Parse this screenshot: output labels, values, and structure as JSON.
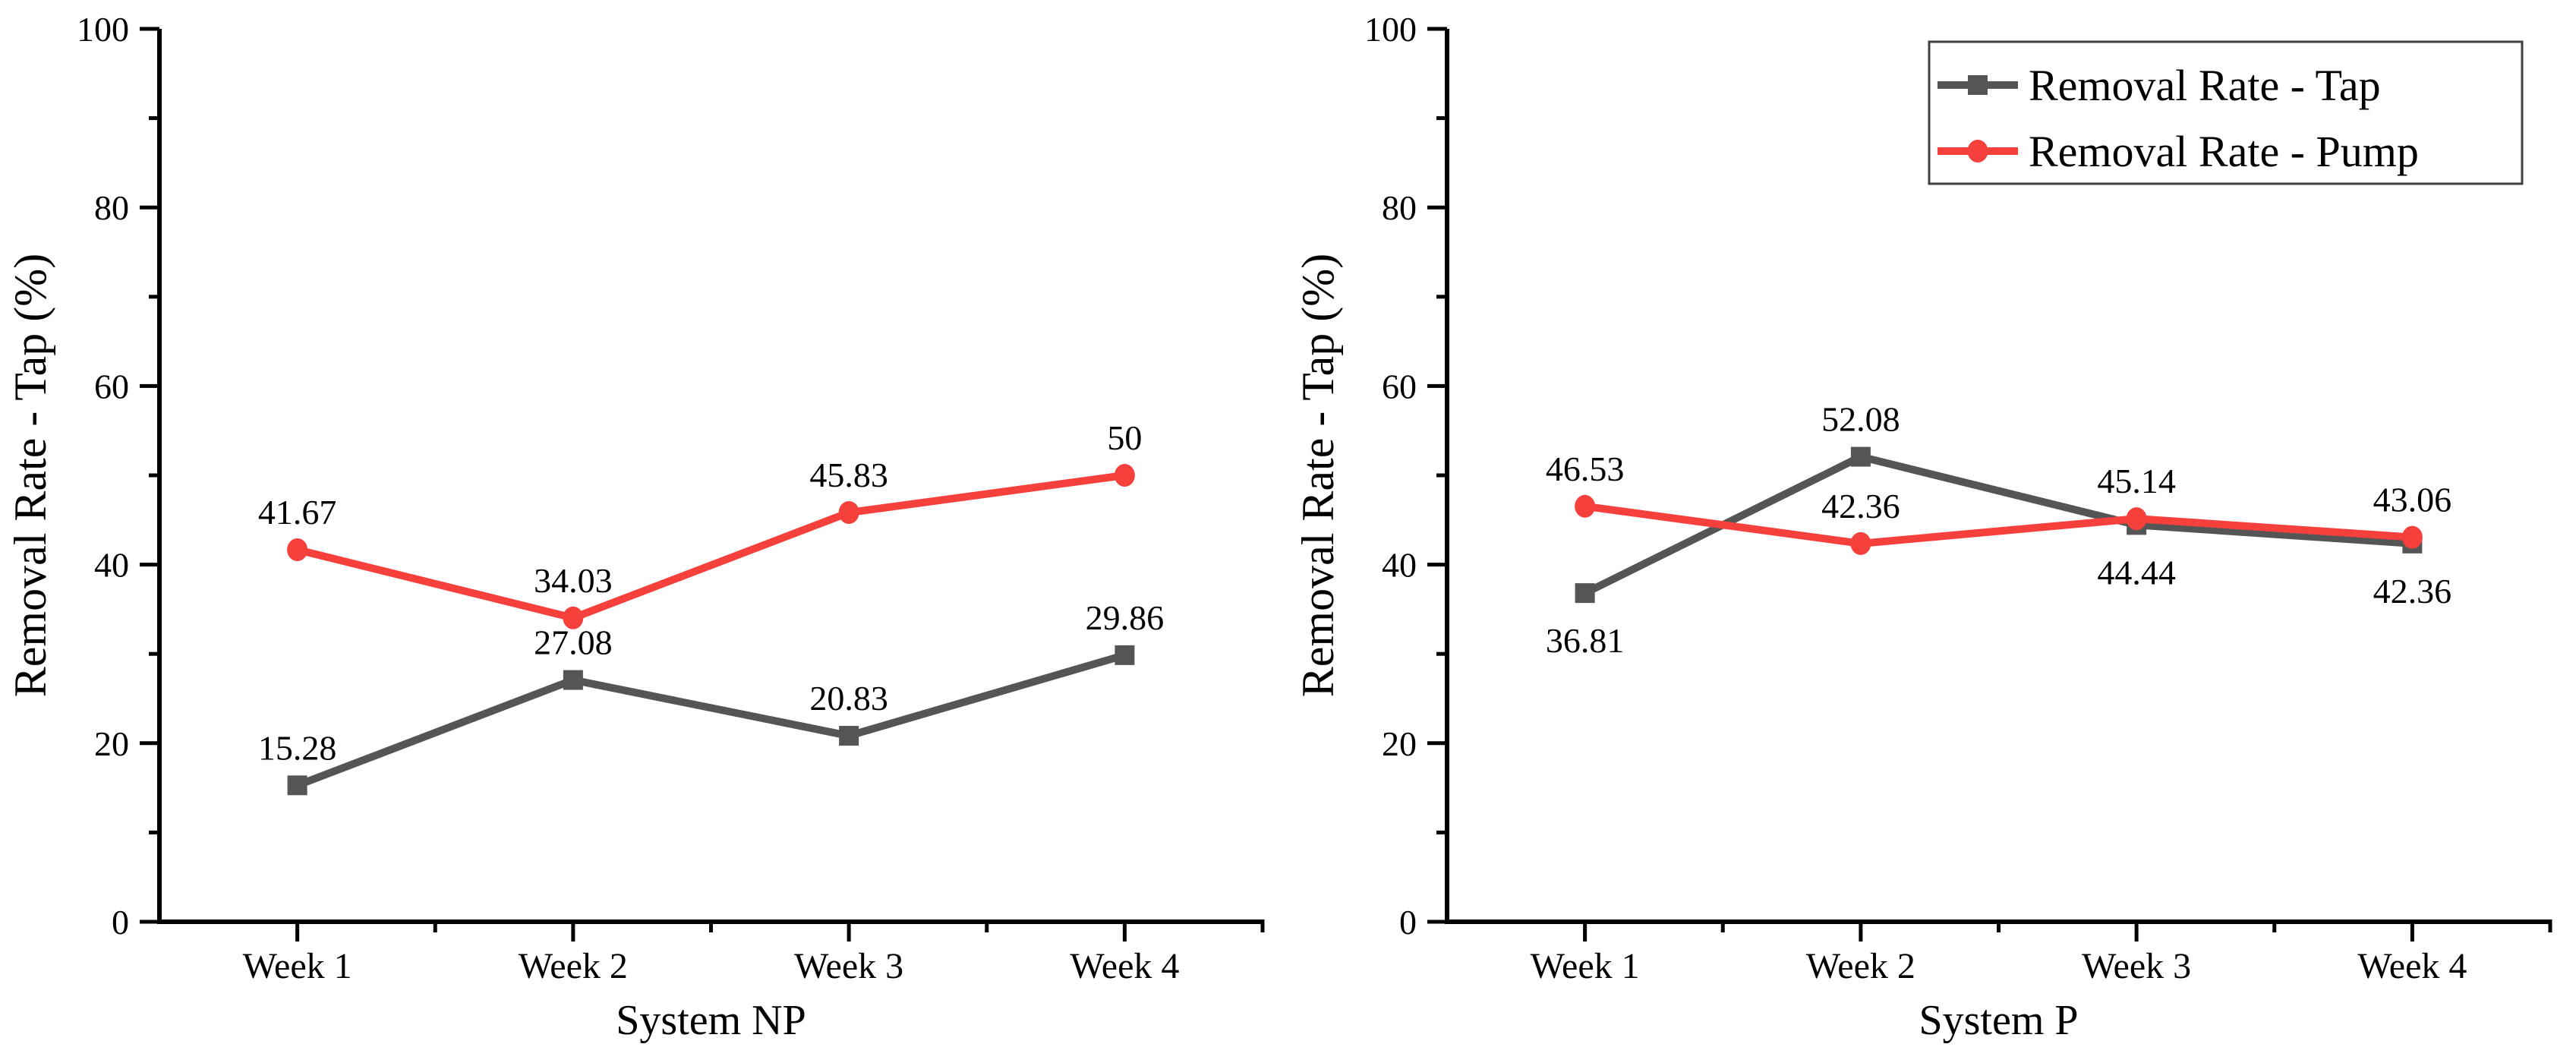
{
  "figure": {
    "background": "#ffffff",
    "text_color": "#000000",
    "axis_color": "#000000"
  },
  "series_styles": {
    "tap": {
      "color": "#555555",
      "marker": "square"
    },
    "pump": {
      "color": "#f5403c",
      "marker": "circle"
    }
  },
  "legend": {
    "border_color": "#3f3f3f",
    "background": "#ffffff",
    "entries": [
      {
        "key": "tap",
        "label": "Removal Rate - Tap"
      },
      {
        "key": "pump",
        "label": "Removal Rate - Pump"
      }
    ]
  },
  "chart_data": [
    {
      "type": "line",
      "title": "",
      "xlabel": "System NP",
      "ylabel": "Removal Rate - Tap (%)",
      "categories": [
        "Week 1",
        "Week 2",
        "Week 3",
        "Week 4"
      ],
      "ylim": [
        0,
        100
      ],
      "y_major_ticks": [
        0,
        20,
        40,
        60,
        80,
        100
      ],
      "y_minor_ticks": [
        10,
        30,
        50,
        70,
        90
      ],
      "grid": false,
      "legend_visible": false,
      "series": [
        {
          "key": "tap",
          "name": "Removal Rate - Tap",
          "values": [
            15.28,
            27.08,
            20.83,
            29.86
          ],
          "point_labels": [
            "15.28",
            "27.08",
            "20.83",
            "29.86"
          ],
          "label_placement": [
            "above",
            "above",
            "above",
            "above"
          ]
        },
        {
          "key": "pump",
          "name": "Removal Rate - Pump",
          "values": [
            41.67,
            34.03,
            45.83,
            50
          ],
          "point_labels": [
            "41.67",
            "34.03",
            "45.83",
            "50"
          ],
          "label_placement": [
            "above",
            "above",
            "above",
            "above"
          ]
        }
      ]
    },
    {
      "type": "line",
      "title": "",
      "xlabel": "System P",
      "ylabel": "Removal Rate - Tap (%)",
      "categories": [
        "Week 1",
        "Week 2",
        "Week 3",
        "Week 4"
      ],
      "ylim": [
        0,
        100
      ],
      "y_major_ticks": [
        0,
        20,
        40,
        60,
        80,
        100
      ],
      "y_minor_ticks": [
        10,
        30,
        50,
        70,
        90
      ],
      "grid": false,
      "legend_visible": true,
      "legend_position": "top-right",
      "series": [
        {
          "key": "tap",
          "name": "Removal Rate - Tap",
          "values": [
            36.81,
            52.08,
            44.44,
            42.36
          ],
          "point_labels": [
            "36.81",
            "52.08",
            "44.44",
            "42.36"
          ],
          "label_placement": [
            "below",
            "above",
            "below",
            "below"
          ]
        },
        {
          "key": "pump",
          "name": "Removal Rate - Pump",
          "values": [
            46.53,
            42.36,
            45.14,
            43.06
          ],
          "point_labels": [
            "46.53",
            "42.36",
            "45.14",
            "43.06"
          ],
          "label_placement": [
            "above",
            "above",
            "above",
            "above"
          ]
        }
      ]
    }
  ]
}
